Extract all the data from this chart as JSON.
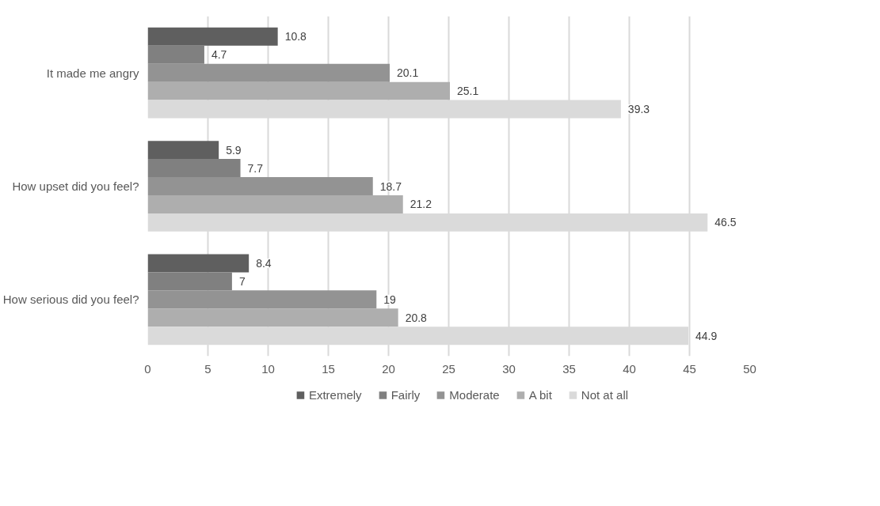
{
  "chart_data": {
    "type": "bar",
    "orientation": "horizontal",
    "categories": [
      "It made me angry",
      "How upset did you feel?",
      "How serious did you feel?"
    ],
    "series": [
      {
        "name": "Extremely",
        "color": "#5f5f5f",
        "values": [
          10.8,
          5.9,
          8.4
        ]
      },
      {
        "name": "Fairly",
        "color": "#808080",
        "values": [
          4.7,
          7.7,
          7
        ]
      },
      {
        "name": "Moderate",
        "color": "#939393",
        "values": [
          20.1,
          18.7,
          19
        ]
      },
      {
        "name": "A bit",
        "color": "#aeaeae",
        "values": [
          25.1,
          21.2,
          20.8
        ]
      },
      {
        "name": "Not at all",
        "color": "#dadada",
        "values": [
          39.3,
          46.5,
          44.9
        ]
      }
    ],
    "xlim": [
      0,
      50
    ],
    "xticks": [
      0,
      5,
      10,
      15,
      20,
      25,
      30,
      35,
      40,
      45,
      50
    ],
    "grid": "x",
    "legend": "bottom",
    "data_labels": true
  }
}
